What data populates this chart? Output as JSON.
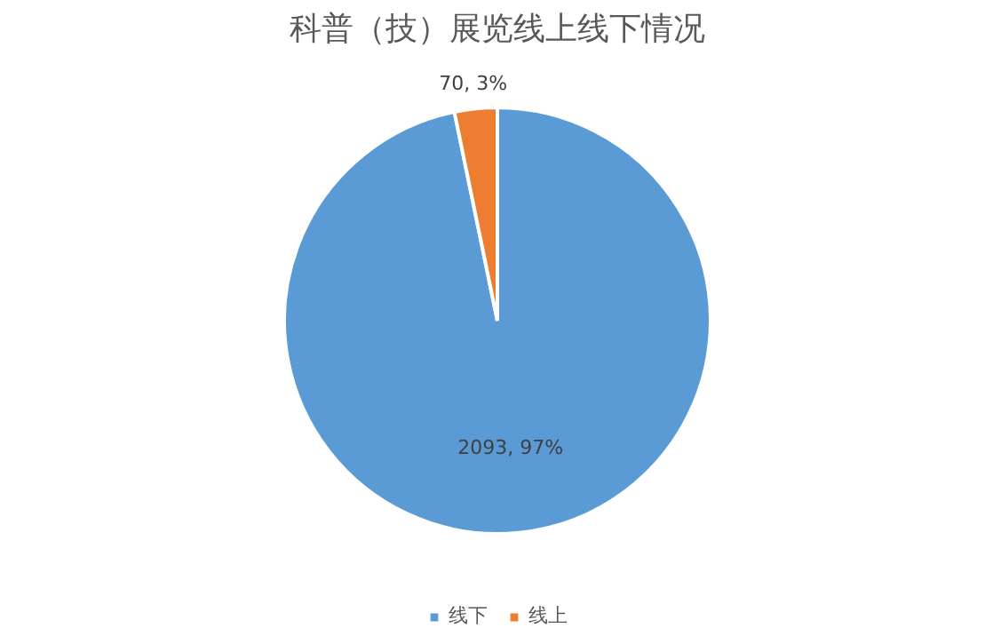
{
  "chart_data": {
    "type": "pie",
    "title": "科普（技）展览线上线下情况",
    "categories": [
      "线下",
      "线上"
    ],
    "values": [
      2093,
      70
    ],
    "colors": [
      "#5b9bd5",
      "#ed7d31"
    ],
    "value_labels": [
      "2093, 97%",
      "70, 3%"
    ],
    "legend": "bottom"
  }
}
